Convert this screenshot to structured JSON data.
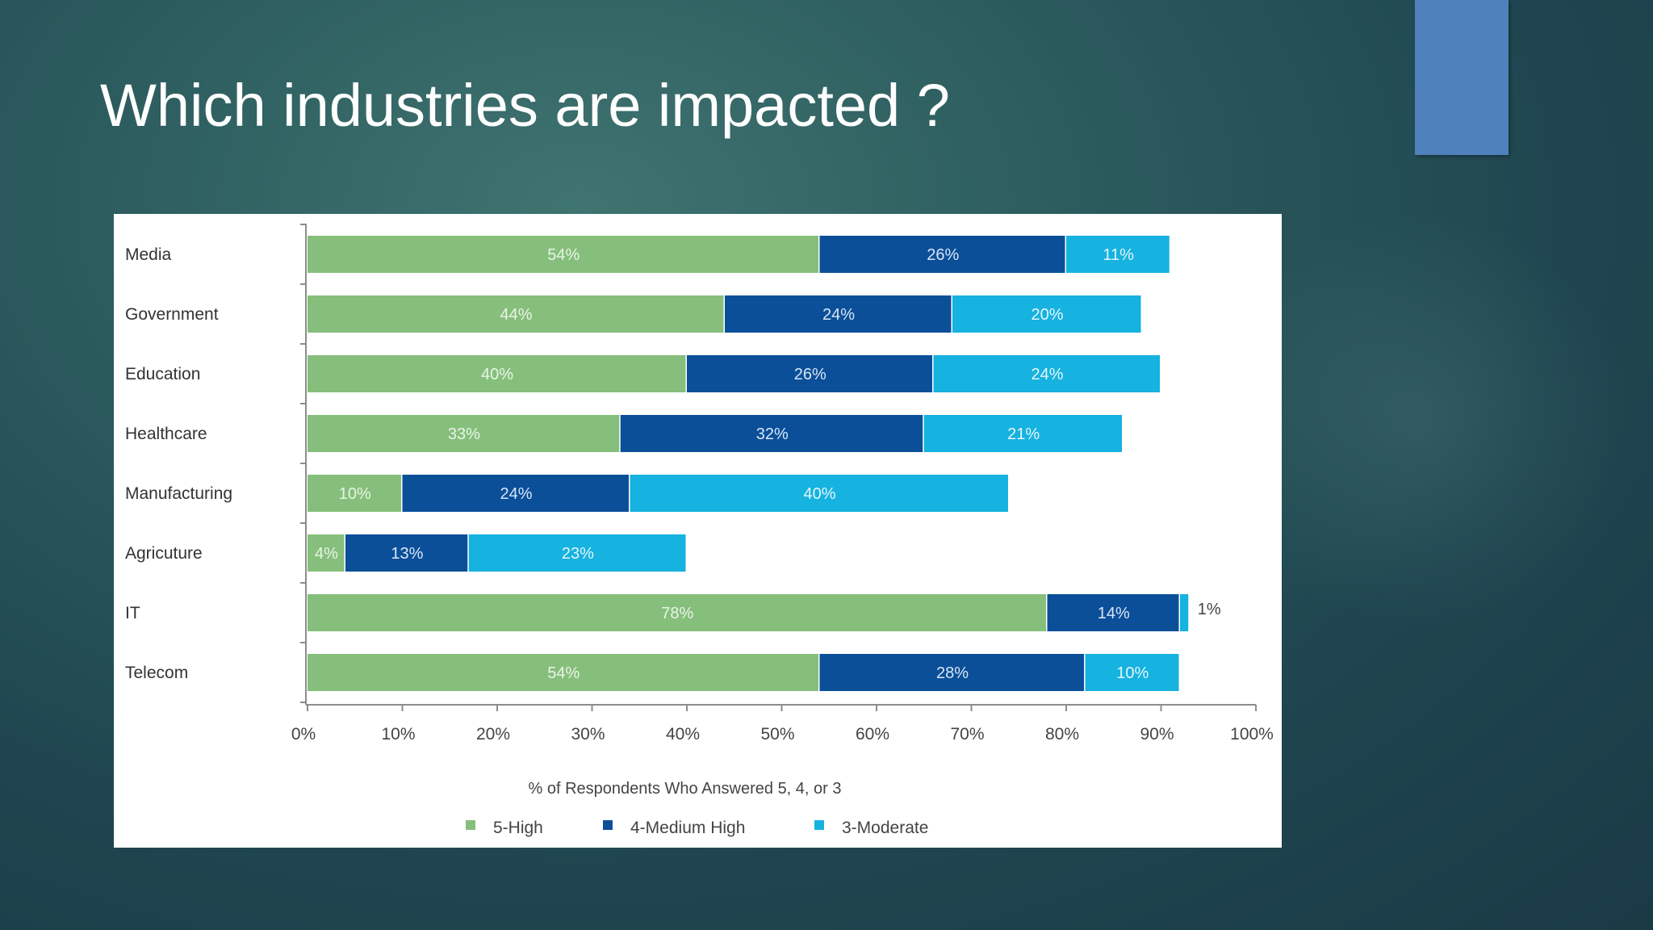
{
  "slide": {
    "title": "Which industries are impacted ?"
  },
  "colors": {
    "high": "#86bf7c",
    "medium_high": "#0b4f99",
    "moderate": "#16b2e0",
    "deco": "#4f81bd"
  },
  "chart_data": {
    "type": "bar",
    "orientation": "horizontal",
    "stacked": true,
    "title": "",
    "xlabel": "% of Respondents Who Answered  5, 4, or 3",
    "ylabel": "",
    "xlim": [
      0,
      100
    ],
    "x_ticks": [
      "0%",
      "10%",
      "20%",
      "30%",
      "40%",
      "50%",
      "60%",
      "70%",
      "80%",
      "90%",
      "100%"
    ],
    "categories": [
      "Media",
      "Government",
      "Education",
      "Healthcare",
      "Manufacturing",
      "Agricuture",
      "IT",
      "Telecom"
    ],
    "series": [
      {
        "name": "5-High",
        "color_key": "high",
        "values": [
          54,
          44,
          40,
          33,
          10,
          4,
          78,
          54
        ],
        "labels": [
          "54%",
          "44%",
          "40%",
          "33%",
          "10%",
          "4%",
          "78%",
          "54%"
        ]
      },
      {
        "name": "4-Medium High",
        "color_key": "medium_high",
        "values": [
          26,
          24,
          26,
          32,
          24,
          13,
          14,
          28
        ],
        "labels": [
          "26%",
          "24%",
          "26%",
          "32%",
          "24%",
          "13%",
          "14%",
          "28%"
        ]
      },
      {
        "name": "3-Moderate",
        "color_key": "moderate",
        "values": [
          11,
          20,
          24,
          21,
          40,
          23,
          1,
          10
        ],
        "labels": [
          "11%",
          "20%",
          "24%",
          "21%",
          "40%",
          "23%",
          "1%",
          "10%"
        ]
      }
    ],
    "legend_position": "bottom"
  }
}
